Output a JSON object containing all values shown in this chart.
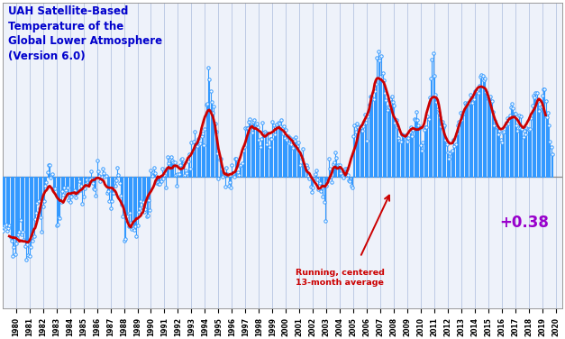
{
  "title": "UAH Satellite-Based\nTemperature of the\nGlobal Lower Atmosphere\n(Version 6.0)",
  "annotation_text": "Running, centered\n13-month average",
  "value_label": "+0.38",
  "title_color": "#0000CC",
  "value_color": "#9900CC",
  "line_color": "#3399FF",
  "smooth_color": "#CC0000",
  "background_color": "#EEF2FA",
  "grid_color": "#AABBDD",
  "zero_line_color": "#888888",
  "ylim": [
    -0.72,
    0.95
  ],
  "start_year": 1979,
  "monthly_data": [
    -0.296,
    -0.274,
    -0.265,
    -0.262,
    -0.294,
    -0.279,
    -0.265,
    -0.332,
    -0.348,
    -0.434,
    -0.386,
    -0.426,
    -0.366,
    -0.335,
    -0.313,
    -0.3,
    -0.239,
    -0.314,
    -0.299,
    -0.347,
    -0.38,
    -0.454,
    -0.37,
    -0.427,
    -0.433,
    -0.382,
    -0.331,
    -0.352,
    -0.327,
    -0.233,
    -0.197,
    -0.144,
    -0.132,
    -0.175,
    -0.222,
    -0.302,
    -0.161,
    -0.133,
    -0.048,
    -0.03,
    0.025,
    0.063,
    0.065,
    -0.005,
    0.014,
    -0.066,
    -0.063,
    -0.063,
    -0.268,
    -0.261,
    -0.222,
    -0.226,
    -0.137,
    -0.081,
    -0.098,
    -0.059,
    -0.073,
    -0.088,
    -0.058,
    -0.127,
    -0.136,
    -0.109,
    -0.088,
    -0.093,
    -0.073,
    -0.116,
    -0.089,
    -0.082,
    -0.026,
    -0.073,
    -0.052,
    -0.149,
    -0.108,
    -0.065,
    -0.038,
    -0.017,
    -0.046,
    -0.014,
    -0.014,
    0.027,
    -0.033,
    -0.064,
    -0.069,
    -0.105,
    0.089,
    0.03,
    0.002,
    -0.027,
    0.001,
    0.044,
    0.019,
    -0.002,
    0.003,
    -0.091,
    -0.08,
    -0.132,
    -0.172,
    -0.135,
    -0.088,
    -0.087,
    -0.05,
    -0.022,
    0.047,
    0.011,
    -0.036,
    -0.105,
    -0.151,
    -0.219,
    -0.351,
    -0.339,
    -0.235,
    -0.218,
    -0.27,
    -0.196,
    -0.251,
    -0.285,
    -0.283,
    -0.292,
    -0.272,
    -0.325,
    -0.268,
    -0.193,
    -0.175,
    -0.133,
    -0.167,
    -0.136,
    -0.194,
    -0.179,
    -0.218,
    -0.212,
    -0.127,
    -0.184,
    0.033,
    0.006,
    0.026,
    0.048,
    0.018,
    -0.036,
    -0.028,
    -0.04,
    -0.041,
    -0.025,
    0.046,
    -0.01,
    0.011,
    -0.062,
    0.044,
    0.11,
    0.073,
    0.099,
    0.106,
    0.088,
    0.078,
    0.077,
    0.011,
    -0.048,
    0.012,
    0.015,
    0.065,
    0.095,
    0.096,
    0.074,
    0.009,
    0.032,
    0.018,
    0.082,
    0.12,
    0.044,
    0.184,
    0.143,
    0.189,
    0.247,
    0.176,
    0.167,
    0.204,
    0.179,
    0.182,
    0.222,
    0.238,
    0.17,
    0.26,
    0.392,
    0.397,
    0.593,
    0.533,
    0.469,
    0.407,
    0.35,
    0.383,
    0.29,
    0.245,
    0.126,
    -0.012,
    0.091,
    0.098,
    0.043,
    0.0,
    0.016,
    -0.053,
    0.048,
    0.015,
    -0.049,
    -0.029,
    -0.062,
    0.062,
    0.019,
    -0.002,
    0.096,
    0.098,
    0.023,
    0.008,
    0.059,
    0.062,
    0.073,
    0.143,
    0.163,
    0.263,
    0.266,
    0.266,
    0.302,
    0.313,
    0.282,
    0.24,
    0.298,
    0.311,
    0.27,
    0.29,
    0.269,
    0.202,
    0.16,
    0.207,
    0.294,
    0.242,
    0.246,
    0.234,
    0.178,
    0.236,
    0.161,
    0.208,
    0.204,
    0.298,
    0.282,
    0.231,
    0.269,
    0.284,
    0.293,
    0.29,
    0.275,
    0.308,
    0.234,
    0.274,
    0.212,
    0.253,
    0.203,
    0.221,
    0.18,
    0.209,
    0.178,
    0.159,
    0.208,
    0.195,
    0.215,
    0.169,
    0.187,
    0.134,
    0.061,
    0.098,
    0.154,
    0.065,
    0.058,
    0.063,
    0.048,
    0.003,
    -0.008,
    -0.053,
    -0.082,
    -0.06,
    -0.012,
    0.012,
    0.033,
    -0.017,
    -0.071,
    -0.037,
    -0.08,
    -0.059,
    -0.111,
    -0.139,
    -0.241,
    -0.05,
    -0.026,
    0.096,
    0.046,
    0.001,
    -0.028,
    0.066,
    0.077,
    0.131,
    0.105,
    0.062,
    0.055,
    0.061,
    0.02,
    0.004,
    -0.005,
    0.024,
    0.042,
    0.043,
    0.01,
    -0.019,
    -0.024,
    -0.05,
    -0.062,
    0.22,
    0.278,
    0.247,
    0.292,
    0.272,
    0.254,
    0.274,
    0.268,
    0.249,
    0.277,
    0.337,
    0.295,
    0.198,
    0.327,
    0.391,
    0.437,
    0.439,
    0.428,
    0.422,
    0.468,
    0.507,
    0.649,
    0.682,
    0.636,
    0.547,
    0.661,
    0.565,
    0.527,
    0.455,
    0.418,
    0.365,
    0.382,
    0.378,
    0.423,
    0.439,
    0.408,
    0.387,
    0.296,
    0.309,
    0.271,
    0.213,
    0.197,
    0.193,
    0.231,
    0.227,
    0.219,
    0.227,
    0.198,
    0.19,
    0.213,
    0.244,
    0.271,
    0.223,
    0.256,
    0.313,
    0.31,
    0.356,
    0.311,
    0.282,
    0.266,
    0.171,
    0.144,
    0.184,
    0.256,
    0.272,
    0.271,
    0.328,
    0.314,
    0.43,
    0.536,
    0.641,
    0.673,
    0.548,
    0.449,
    0.41,
    0.37,
    0.351,
    0.325,
    0.276,
    0.3,
    0.27,
    0.282,
    0.202,
    0.175,
    0.133,
    0.098,
    0.125,
    0.139,
    0.142,
    0.201,
    0.168,
    0.177,
    0.236,
    0.28,
    0.298,
    0.35,
    0.307,
    0.341,
    0.342,
    0.403,
    0.395,
    0.386,
    0.402,
    0.405,
    0.445,
    0.428,
    0.401,
    0.422,
    0.466,
    0.466,
    0.468,
    0.455,
    0.498,
    0.547,
    0.555,
    0.552,
    0.527,
    0.538,
    0.46,
    0.428,
    0.426,
    0.427,
    0.436,
    0.414,
    0.352,
    0.279,
    0.306,
    0.271,
    0.269,
    0.23,
    0.248,
    0.201,
    0.188,
    0.242,
    0.244,
    0.281,
    0.294,
    0.321,
    0.291,
    0.334,
    0.379,
    0.397,
    0.375,
    0.343,
    0.344,
    0.282,
    0.249,
    0.334,
    0.266,
    0.329,
    0.261,
    0.217,
    0.249,
    0.233,
    0.265,
    0.261,
    0.254,
    0.262,
    0.319,
    0.389,
    0.44,
    0.432,
    0.457,
    0.458,
    0.414,
    0.358,
    0.376,
    0.385,
    0.442,
    0.475,
    0.476,
    0.413,
    0.325,
    0.35,
    0.281,
    0.191,
    0.162,
    0.12
  ]
}
